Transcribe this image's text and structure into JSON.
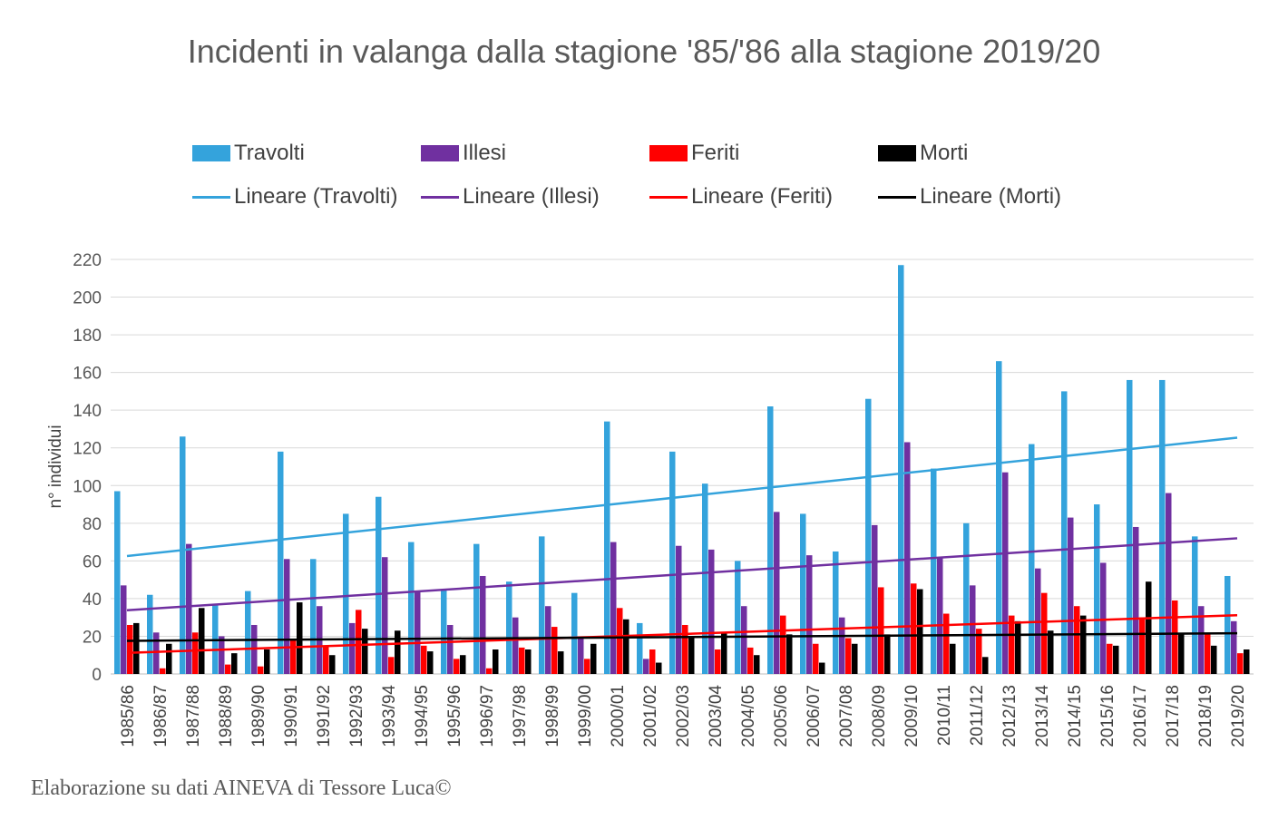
{
  "title": "Incidenti in valanga dalla stagione '85/'86 alla stagione 2019/20",
  "credit": "Elaborazione  su dati AINEVA di Tessore Luca©",
  "legend": {
    "travolti": "Travolti",
    "illesi": "Illesi",
    "feriti": "Feriti",
    "morti": "Morti",
    "lin_travolti": "Lineare (Travolti)",
    "lin_illesi": "Lineare (Illesi)",
    "lin_feriti": "Lineare (Feriti)",
    "lin_morti": "Lineare (Morti)"
  },
  "chart_data": {
    "type": "bar",
    "title": "Incidenti in valanga dalla stagione '85/'86 alla stagione 2019/20",
    "xlabel": "",
    "ylabel": "n° individui",
    "ylim": [
      0,
      220
    ],
    "yticks": [
      0,
      20,
      40,
      60,
      80,
      100,
      120,
      140,
      160,
      180,
      200,
      220
    ],
    "grid": "horizontal",
    "legend_position": "top",
    "categories": [
      "1985/86",
      "1986/87",
      "1987/88",
      "1988/89",
      "1989/90",
      "1990/91",
      "1991/92",
      "1992/93",
      "1993/94",
      "1994/95",
      "1995/96",
      "1996/97",
      "1997/98",
      "1998/99",
      "1999/00",
      "2000/01",
      "2001/02",
      "2002/03",
      "2003/04",
      "2004/05",
      "2005/06",
      "2006/07",
      "2007/08",
      "2008/09",
      "2009/10",
      "2010/11",
      "2011/12",
      "2012/13",
      "2013/14",
      "2014/15",
      "2015/16",
      "2016/17",
      "2017/18",
      "2018/19",
      "2019/20"
    ],
    "series": [
      {
        "name": "Travolti",
        "color": "#34a3dc",
        "values": [
          97,
          42,
          126,
          37,
          44,
          118,
          61,
          85,
          94,
          70,
          45,
          69,
          49,
          73,
          43,
          134,
          27,
          118,
          101,
          60,
          142,
          85,
          65,
          146,
          217,
          109,
          80,
          166,
          122,
          150,
          90,
          156,
          156,
          73,
          52
        ]
      },
      {
        "name": "Illesi",
        "color": "#7030a0",
        "values": [
          47,
          22,
          69,
          20,
          26,
          61,
          36,
          27,
          62,
          44,
          26,
          52,
          30,
          36,
          19,
          70,
          8,
          68,
          66,
          36,
          86,
          63,
          30,
          79,
          123,
          62,
          47,
          107,
          56,
          83,
          59,
          78,
          96,
          36,
          28
        ]
      },
      {
        "name": "Feriti",
        "color": "#ff0000",
        "values": [
          26,
          3,
          22,
          5,
          4,
          18,
          15,
          34,
          9,
          15,
          8,
          3,
          14,
          25,
          8,
          35,
          13,
          26,
          13,
          14,
          31,
          16,
          19,
          46,
          48,
          32,
          24,
          31,
          43,
          36,
          16,
          30,
          39,
          21,
          11
        ]
      },
      {
        "name": "Morti",
        "color": "#000000",
        "values": [
          27,
          16,
          35,
          11,
          13,
          38,
          10,
          24,
          23,
          12,
          10,
          13,
          13,
          12,
          16,
          29,
          6,
          20,
          22,
          10,
          21,
          6,
          16,
          21,
          45,
          16,
          9,
          28,
          23,
          31,
          15,
          49,
          21,
          15,
          13
        ]
      }
    ],
    "trendlines": [
      {
        "name": "Lineare (Travolti)",
        "color": "#34a3dc",
        "start": 62.6,
        "end": 125.4
      },
      {
        "name": "Lineare (Illesi)",
        "color": "#7030a0",
        "start": 33.8,
        "end": 72.0
      },
      {
        "name": "Lineare (Feriti)",
        "color": "#ff0000",
        "start": 11.2,
        "end": 31.2
      },
      {
        "name": "Lineare (Morti)",
        "color": "#000000",
        "start": 17.6,
        "end": 21.6
      }
    ]
  }
}
